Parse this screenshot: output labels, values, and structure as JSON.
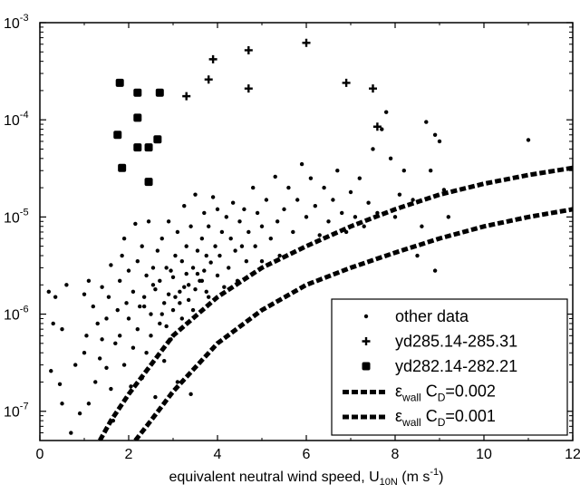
{
  "chart_data": {
    "type": "scatter",
    "title": "",
    "xlabel": {
      "main": "equivalent neutral wind speed, U",
      "main_sub": "10N",
      "unit_open": " (m s",
      "unit_sup": "-1",
      "unit_close": ")"
    },
    "ylabel": "",
    "xlim": [
      0,
      12
    ],
    "ylim": [
      5e-08,
      0.001
    ],
    "yscale": "log",
    "grid": false,
    "legend_position": "bottom-right",
    "x_ticks": [
      {
        "value": 0,
        "label": "0"
      },
      {
        "value": 2,
        "label": "2"
      },
      {
        "value": 4,
        "label": "4"
      },
      {
        "value": 6,
        "label": "6"
      },
      {
        "value": 8,
        "label": "8"
      },
      {
        "value": 10,
        "label": "10"
      },
      {
        "value": 12,
        "label": "12"
      }
    ],
    "y_ticks": [
      {
        "value": 1e-07,
        "base": "10",
        "exp": "-7"
      },
      {
        "value": 1e-06,
        "base": "10",
        "exp": "-6"
      },
      {
        "value": 1e-05,
        "base": "10",
        "exp": "-5"
      },
      {
        "value": 0.0001,
        "base": "10",
        "exp": "-4"
      },
      {
        "value": 0.001,
        "base": "10",
        "exp": "-3"
      }
    ],
    "series": [
      {
        "name": "other data",
        "marker": "dot",
        "color": "#000000",
        "points": [
          [
            0.2,
            1.7e-06
          ],
          [
            0.35,
            1.5e-06
          ],
          [
            0.5,
            7e-07
          ],
          [
            0.6,
            2e-06
          ],
          [
            0.3,
            8e-07
          ],
          [
            0.25,
            2.6e-07
          ],
          [
            0.45,
            1.9e-07
          ],
          [
            0.5,
            1.2e-07
          ],
          [
            0.7,
            6e-08
          ],
          [
            0.9,
            9.5e-08
          ],
          [
            0.8,
            3e-07
          ],
          [
            1.0,
            4e-07
          ],
          [
            1.0,
            1.6e-06
          ],
          [
            1.1,
            2.2e-06
          ],
          [
            1.05,
            6e-07
          ],
          [
            1.2,
            1.2e-06
          ],
          [
            1.25,
            2e-07
          ],
          [
            1.1,
            1.2e-07
          ],
          [
            1.3,
            8e-07
          ],
          [
            1.35,
            3.5e-07
          ],
          [
            1.4,
            1.9e-06
          ],
          [
            1.4,
            5.5e-07
          ],
          [
            1.5,
            2.8e-07
          ],
          [
            1.5,
            9e-07
          ],
          [
            1.55,
            1.5e-06
          ],
          [
            1.6,
            3.2e-06
          ],
          [
            1.6,
            1.7e-07
          ],
          [
            1.65,
            8e-08
          ],
          [
            1.7,
            5e-07
          ],
          [
            1.75,
            1.1e-06
          ],
          [
            1.8,
            6e-07
          ],
          [
            1.8,
            2.2e-06
          ],
          [
            1.85,
            4e-06
          ],
          [
            1.9,
            6e-06
          ],
          [
            1.9,
            3e-07
          ],
          [
            1.95,
            1.3e-06
          ],
          [
            2.0,
            9e-07
          ],
          [
            2.0,
            2.8e-06
          ],
          [
            2.05,
            1.8e-07
          ],
          [
            2.1,
            4.5e-07
          ],
          [
            2.1,
            1.7e-06
          ],
          [
            2.15,
            8.5e-06
          ],
          [
            2.2,
            3.5e-06
          ],
          [
            2.2,
            7e-07
          ],
          [
            2.25,
            1.2e-06
          ],
          [
            2.3,
            2.2e-07
          ],
          [
            2.3,
            5e-06
          ],
          [
            2.35,
            1.5e-06
          ],
          [
            2.4,
            2.5e-06
          ],
          [
            2.4,
            4e-07
          ],
          [
            2.45,
            9e-06
          ],
          [
            2.5,
            1e-06
          ],
          [
            2.5,
            6e-07
          ],
          [
            2.55,
            3e-06
          ],
          [
            2.6,
            1.8e-06
          ],
          [
            2.6,
            1.4e-07
          ],
          [
            2.65,
            4.5e-06
          ],
          [
            2.7,
            2.2e-06
          ],
          [
            2.7,
            8e-07
          ],
          [
            2.75,
            6e-06
          ],
          [
            2.8,
            1.3e-06
          ],
          [
            2.8,
            3.3e-07
          ],
          [
            2.85,
            3e-06
          ],
          [
            2.9,
            1.6e-06
          ],
          [
            2.9,
            9e-06
          ],
          [
            2.95,
            5.5e-07
          ],
          [
            3.0,
            2.4e-06
          ],
          [
            3.0,
            1.1e-06
          ],
          [
            3.05,
            4e-06
          ],
          [
            3.1,
            7e-06
          ],
          [
            3.1,
            2e-07
          ],
          [
            3.15,
            1.7e-06
          ],
          [
            3.2,
            3.5e-06
          ],
          [
            3.2,
            9e-07
          ],
          [
            3.25,
            1.3e-05
          ],
          [
            3.3,
            2.6e-06
          ],
          [
            3.3,
            5e-06
          ],
          [
            3.35,
            1.4e-06
          ],
          [
            3.4,
            1.5e-07
          ],
          [
            3.4,
            8e-06
          ],
          [
            3.45,
            3e-06
          ],
          [
            3.5,
            1.8e-06
          ],
          [
            3.5,
            1.7e-05
          ],
          [
            3.55,
            4.5e-06
          ],
          [
            3.6,
            2.2e-06
          ],
          [
            3.65,
            6e-06
          ],
          [
            3.7,
            2.8e-06
          ],
          [
            3.7,
            1.1e-05
          ],
          [
            3.75,
            4e-06
          ],
          [
            3.8,
            1.5e-06
          ],
          [
            3.8,
            8e-06
          ],
          [
            3.85,
            3.4e-06
          ],
          [
            3.9,
            1.6e-05
          ],
          [
            3.95,
            5e-06
          ],
          [
            4.0,
            2.5e-06
          ],
          [
            4.0,
            1.2e-05
          ],
          [
            4.05,
            4e-06
          ],
          [
            4.1,
            7e-06
          ],
          [
            4.15,
            1.9e-06
          ],
          [
            4.2,
            1e-05
          ],
          [
            4.25,
            3e-06
          ],
          [
            4.3,
            6e-06
          ],
          [
            4.35,
            1.4e-05
          ],
          [
            4.4,
            4.5e-06
          ],
          [
            4.45,
            2.2e-06
          ],
          [
            4.5,
            9e-06
          ],
          [
            4.55,
            5e-06
          ],
          [
            4.6,
            1.2e-05
          ],
          [
            4.65,
            3.5e-06
          ],
          [
            4.7,
            7e-06
          ],
          [
            4.8,
            2e-05
          ],
          [
            4.85,
            5e-06
          ],
          [
            4.9,
            1.1e-05
          ],
          [
            5.0,
            3.5e-06
          ],
          [
            5.0,
            8e-06
          ],
          [
            5.1,
            1.5e-05
          ],
          [
            5.2,
            6e-06
          ],
          [
            5.3,
            2.6e-05
          ],
          [
            5.35,
            9e-06
          ],
          [
            5.4,
            4e-06
          ],
          [
            5.5,
            1.2e-05
          ],
          [
            5.6,
            2e-05
          ],
          [
            5.7,
            7e-06
          ],
          [
            5.8,
            1.5e-05
          ],
          [
            5.9,
            3.5e-05
          ],
          [
            6.0,
            1e-05
          ],
          [
            6.1,
            2.5e-05
          ],
          [
            6.2,
            1.3e-05
          ],
          [
            6.3,
            6.5e-06
          ],
          [
            6.4,
            2e-05
          ],
          [
            6.5,
            9e-06
          ],
          [
            6.6,
            1.5e-05
          ],
          [
            6.7,
            3e-05
          ],
          [
            6.8,
            1.1e-05
          ],
          [
            6.9,
            7e-06
          ],
          [
            7.0,
            1.8e-05
          ],
          [
            7.1,
            1e-05
          ],
          [
            7.2,
            2.5e-05
          ],
          [
            7.3,
            8e-06
          ],
          [
            7.4,
            1.4e-05
          ],
          [
            7.5,
            5e-05
          ],
          [
            7.6,
            1.1e-05
          ],
          [
            7.7,
            8e-05
          ],
          [
            7.8,
            0.00012
          ],
          [
            7.9,
            4e-05
          ],
          [
            8.0,
            1e-05
          ],
          [
            8.1,
            1.7e-05
          ],
          [
            8.2,
            3e-05
          ],
          [
            8.4,
            1.5e-05
          ],
          [
            8.6,
            8e-06
          ],
          [
            8.7,
            9.5e-05
          ],
          [
            8.8,
            3e-05
          ],
          [
            8.9,
            7e-05
          ],
          [
            9.0,
            6e-05
          ],
          [
            9.1,
            1.9e-05
          ],
          [
            9.2,
            1e-05
          ],
          [
            11.0,
            6.2e-05
          ],
          [
            8.9,
            2.8e-06
          ],
          [
            8.5,
            4e-06
          ],
          [
            2.35,
            1.2e-06
          ],
          [
            2.55,
            2e-06
          ],
          [
            2.75,
            1e-06
          ],
          [
            2.95,
            2.8e-06
          ],
          [
            3.15,
            1.3e-06
          ],
          [
            3.35,
            2e-06
          ],
          [
            3.55,
            2.6e-06
          ],
          [
            3.75,
            1.7e-06
          ],
          [
            2.85,
            7.5e-07
          ],
          [
            3.05,
            1.5e-06
          ],
          [
            3.25,
            1.9e-06
          ],
          [
            3.45,
            1.1e-06
          ],
          [
            3.65,
            2.2e-06
          ]
        ]
      },
      {
        "name": "yd285.14-285.31",
        "marker": "plus",
        "color": "#000000",
        "points": [
          [
            3.3,
            0.000175
          ],
          [
            3.8,
            0.00026
          ],
          [
            3.9,
            0.00042
          ],
          [
            4.7,
            0.00052
          ],
          [
            4.7,
            0.00021
          ],
          [
            6.0,
            0.00062
          ],
          [
            6.9,
            0.00024
          ],
          [
            7.5,
            0.00021
          ],
          [
            7.6,
            8.5e-05
          ]
        ]
      },
      {
        "name": "yd282.14-282.21",
        "marker": "square",
        "color": "#000000",
        "points": [
          [
            1.8,
            0.00024
          ],
          [
            2.2,
            0.00019
          ],
          [
            2.7,
            0.00019
          ],
          [
            2.2,
            0.000105
          ],
          [
            1.75,
            7e-05
          ],
          [
            2.2,
            5.2e-05
          ],
          [
            2.45,
            5.2e-05
          ],
          [
            2.65,
            6.3e-05
          ],
          [
            1.85,
            3.2e-05
          ],
          [
            2.45,
            2.3e-05
          ]
        ]
      },
      {
        "name_symbol": "ε",
        "name_sub": "wall",
        "name_cd": "C",
        "name_cd_sub": "D",
        "name_value": "=0.002",
        "marker": "dashed-line",
        "color": "#000000",
        "points": [
          [
            1.35,
            5e-08
          ],
          [
            1.6,
            8e-08
          ],
          [
            2,
            1.5e-07
          ],
          [
            2.5,
            3e-07
          ],
          [
            3,
            6e-07
          ],
          [
            4,
            1.5e-06
          ],
          [
            5,
            3e-06
          ],
          [
            6,
            5e-06
          ],
          [
            7,
            8e-06
          ],
          [
            8,
            1.2e-05
          ],
          [
            9,
            1.7e-05
          ],
          [
            10,
            2.2e-05
          ],
          [
            11,
            2.7e-05
          ],
          [
            12,
            3.2e-05
          ]
        ]
      },
      {
        "name_symbol": "ε",
        "name_sub": "wall",
        "name_cd": "C",
        "name_cd_sub": "D",
        "name_value": "=0.001",
        "marker": "dashed-line",
        "color": "#000000",
        "points": [
          [
            2.15,
            5e-08
          ],
          [
            2.5,
            8e-08
          ],
          [
            3,
            1.6e-07
          ],
          [
            4,
            5e-07
          ],
          [
            5,
            1.1e-06
          ],
          [
            6,
            2e-06
          ],
          [
            7,
            3e-06
          ],
          [
            8,
            4.3e-06
          ],
          [
            9,
            6e-06
          ],
          [
            10,
            8e-06
          ],
          [
            11,
            1e-05
          ],
          [
            12,
            1.2e-05
          ]
        ]
      }
    ]
  }
}
